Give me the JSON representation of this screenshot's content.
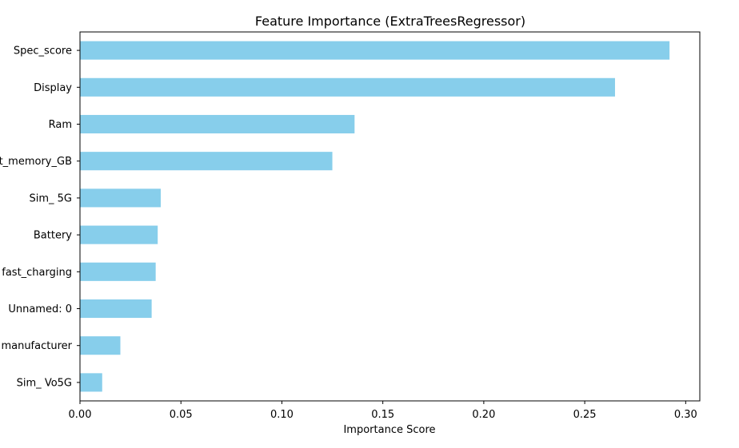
{
  "chart_data": {
    "type": "bar",
    "orientation": "horizontal",
    "title": "Feature Importance (ExtraTreesRegressor)",
    "xlabel": "Importance Score",
    "ylabel": "",
    "xlim": [
      0.0,
      0.307
    ],
    "xticks": [
      0.0,
      0.05,
      0.1,
      0.15,
      0.2,
      0.25,
      0.3
    ],
    "xtick_labels": [
      "0.00",
      "0.05",
      "0.10",
      "0.15",
      "0.20",
      "0.25",
      "0.30"
    ],
    "categories": [
      "Spec_score",
      "Display",
      "Ram",
      "Inbuilt_memory_GB",
      "Sim_ 5G",
      "Battery",
      "fast_charging",
      "Unnamed: 0",
      "manufacturer",
      "Sim_ Vo5G"
    ],
    "values": [
      0.292,
      0.265,
      0.136,
      0.125,
      0.04,
      0.0385,
      0.0375,
      0.0355,
      0.02,
      0.011
    ],
    "bar_color": "#87ceeb",
    "grid": false,
    "legend": "none"
  }
}
